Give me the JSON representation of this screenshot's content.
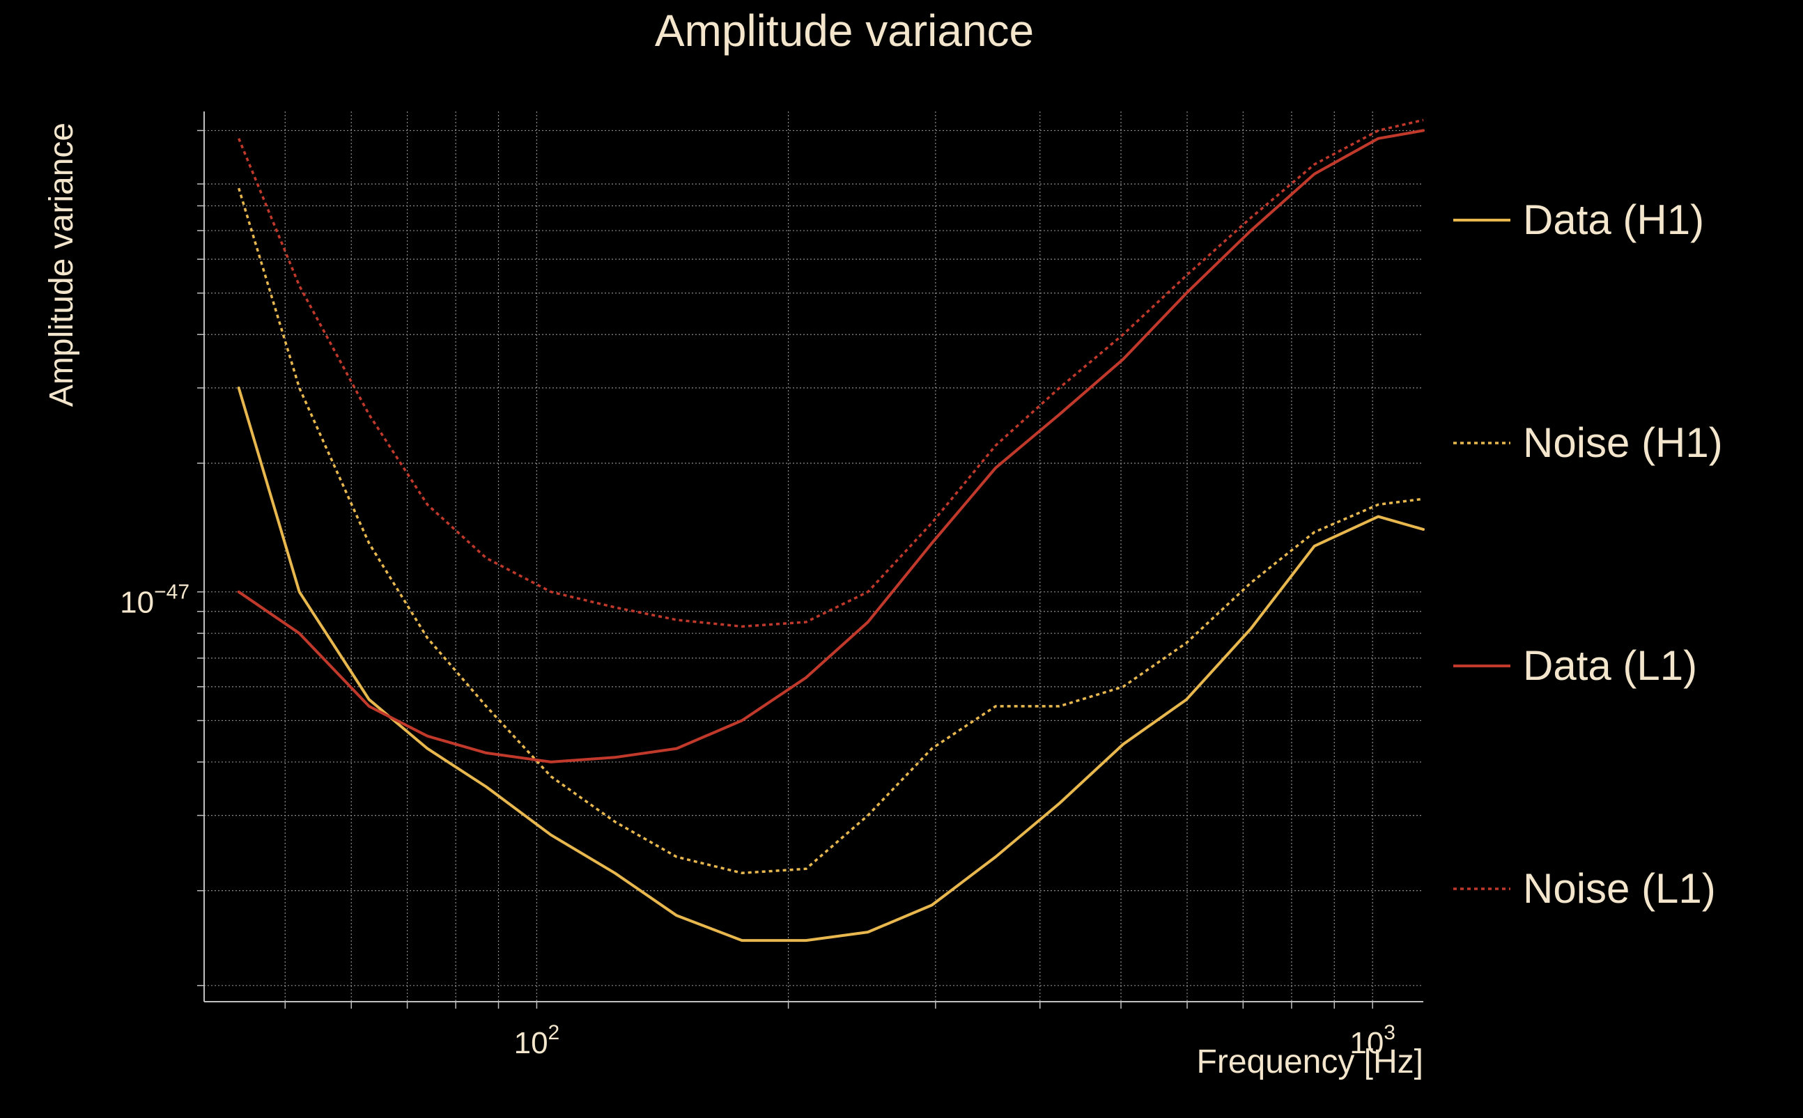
{
  "chart_data": {
    "type": "line",
    "title": "Amplitude variance",
    "xlabel": "Frequency [Hz]",
    "ylabel": "Amplitude variance",
    "x_scale": "log",
    "y_scale": "log",
    "xlim": [
      40,
      1150
    ],
    "ylim": [
      1.1e-48,
      1.33e-46
    ],
    "x_ticks": [
      {
        "value": 100,
        "base": "10",
        "exp": "2"
      },
      {
        "value": 1000,
        "base": "10",
        "exp": "3"
      }
    ],
    "y_ticks": [
      {
        "value": 1e-47,
        "base": "10",
        "exp": "−47"
      }
    ],
    "x_minor_ticks": [
      50,
      60,
      70,
      80,
      90,
      200,
      300,
      400,
      500,
      600,
      700,
      800,
      900
    ],
    "y_minor_ticks": [
      1.2e-48,
      2e-48,
      3e-48,
      4e-48,
      5e-48,
      6e-48,
      7e-48,
      8e-48,
      9e-48,
      2e-47,
      3e-47,
      4e-47,
      5e-47,
      6e-47,
      7e-47,
      8e-47,
      9e-47,
      1.2e-46
    ],
    "grid": true,
    "legend_position": "right",
    "colors": {
      "background": "#000000",
      "text": "#f3e6cc",
      "grid": "#8c8c8c",
      "axis": "#bfbfbf",
      "h1": "#e8b84f",
      "l1": "#c0392b"
    },
    "series": [
      {
        "name": "Data (H1)",
        "color": "#e8b84f",
        "dash": "solid",
        "x": [
          44,
          52,
          63,
          74,
          87,
          104,
          124,
          147,
          176,
          210,
          249,
          297,
          354,
          422,
          503,
          599,
          715,
          852,
          1016,
          1150
        ],
        "y": [
          3e-47,
          1e-47,
          5.6e-48,
          4.3e-48,
          3.5e-48,
          2.7e-48,
          2.2e-48,
          1.75e-48,
          1.53e-48,
          1.53e-48,
          1.6e-48,
          1.85e-48,
          2.4e-48,
          3.2e-48,
          4.4e-48,
          5.6e-48,
          8.2e-48,
          1.28e-47,
          1.5e-47,
          1.4e-47
        ]
      },
      {
        "name": "Noise (H1)",
        "color": "#e8b84f",
        "dash": "dotted",
        "x": [
          44,
          52,
          63,
          74,
          87,
          104,
          124,
          147,
          176,
          210,
          249,
          297,
          354,
          422,
          503,
          599,
          715,
          852,
          1016,
          1150
        ],
        "y": [
          8.8e-47,
          3e-47,
          1.3e-47,
          7.8e-48,
          5.4e-48,
          3.7e-48,
          2.9e-48,
          2.4e-48,
          2.2e-48,
          2.25e-48,
          3e-48,
          4.3e-48,
          5.4e-48,
          5.4e-48,
          6e-48,
          7.6e-48,
          1.05e-47,
          1.38e-47,
          1.6e-47,
          1.65e-47
        ]
      },
      {
        "name": "Data (L1)",
        "color": "#c0392b",
        "dash": "solid",
        "x": [
          44,
          52,
          63,
          74,
          87,
          104,
          124,
          147,
          176,
          210,
          249,
          297,
          354,
          422,
          503,
          599,
          715,
          852,
          1016,
          1150
        ],
        "y": [
          1e-47,
          8e-48,
          5.4e-48,
          4.6e-48,
          4.2e-48,
          4e-48,
          4.1e-48,
          4.3e-48,
          5e-48,
          6.3e-48,
          8.5e-48,
          1.3e-47,
          1.95e-47,
          2.6e-47,
          3.5e-47,
          5e-47,
          7e-47,
          9.5e-47,
          1.15e-46,
          1.2e-46
        ]
      },
      {
        "name": "Noise (L1)",
        "color": "#c0392b",
        "dash": "dotted",
        "x": [
          44,
          52,
          63,
          74,
          87,
          104,
          124,
          147,
          176,
          210,
          249,
          297,
          354,
          422,
          503,
          599,
          715,
          852,
          1016,
          1150
        ],
        "y": [
          1.15e-46,
          5.2e-47,
          2.6e-47,
          1.6e-47,
          1.2e-47,
          1e-47,
          9.2e-48,
          8.6e-48,
          8.3e-48,
          8.5e-48,
          1e-47,
          1.45e-47,
          2.2e-47,
          3e-47,
          4e-47,
          5.5e-47,
          7.5e-47,
          1e-46,
          1.2e-46,
          1.27e-46
        ]
      }
    ]
  }
}
